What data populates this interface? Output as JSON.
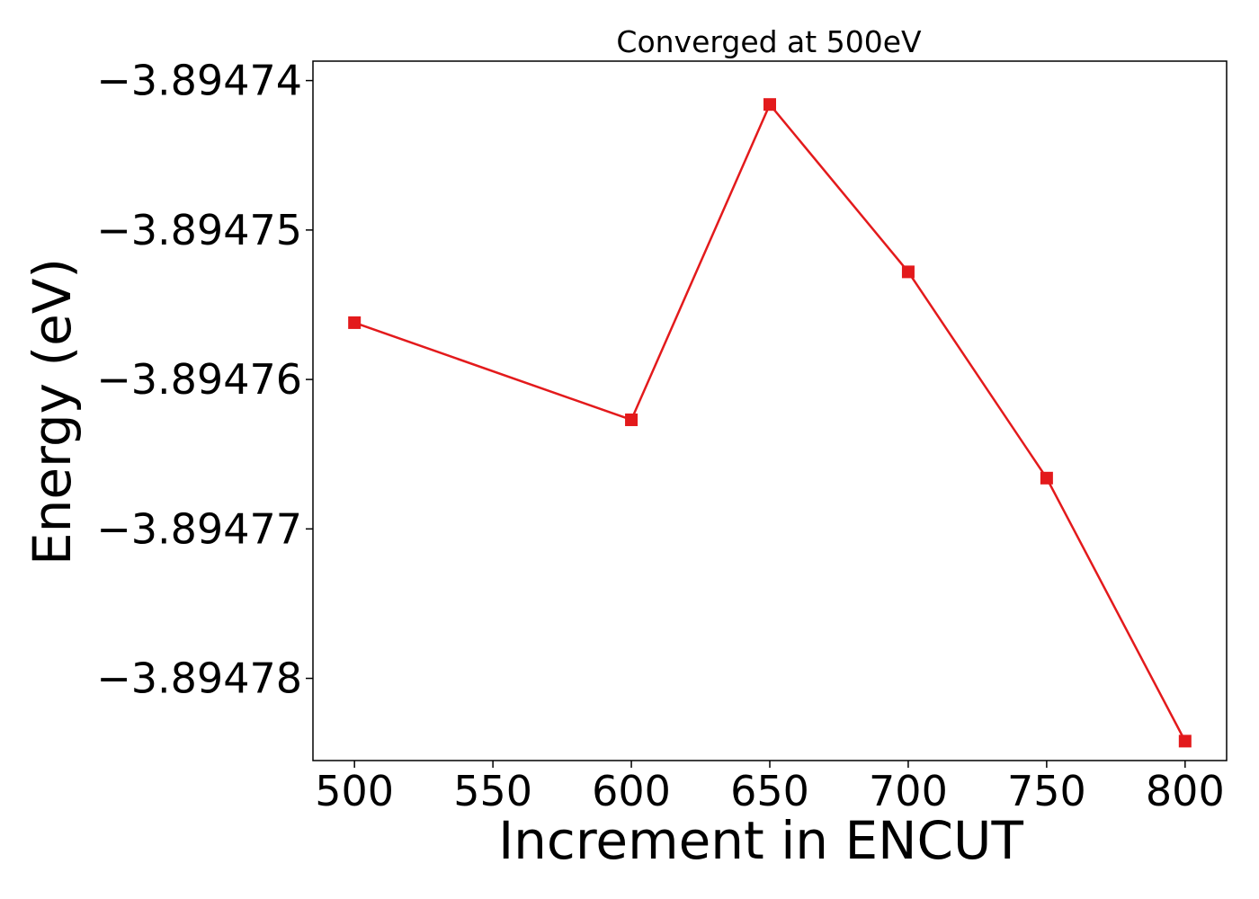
{
  "chart_data": {
    "type": "line",
    "title": "Converged at 500eV",
    "xlabel": "Increment in ENCUT",
    "ylabel": "Energy (eV)",
    "x": [
      500,
      600,
      650,
      700,
      750,
      800
    ],
    "series": [
      {
        "values": [
          -3.8947562,
          -3.8947627,
          -3.8947416,
          -3.8947528,
          -3.8947666,
          -3.8947842
        ],
        "color": "#e31a1c",
        "marker": "square"
      }
    ],
    "xticks": [
      500,
      550,
      600,
      650,
      700,
      750,
      800
    ],
    "yticks": [
      -3.89474,
      -3.89475,
      -3.89476,
      -3.89477,
      -3.89478
    ],
    "xtick_labels": [
      "500",
      "550",
      "600",
      "650",
      "700",
      "750",
      "800"
    ],
    "ytick_labels": [
      "−3.89474",
      "−3.89475",
      "−3.89476",
      "−3.89477",
      "−3.89478"
    ],
    "xlim": [
      485,
      815
    ],
    "ylim": [
      -3.8947855,
      -3.8947387
    ],
    "grid": false,
    "legend": "none"
  }
}
